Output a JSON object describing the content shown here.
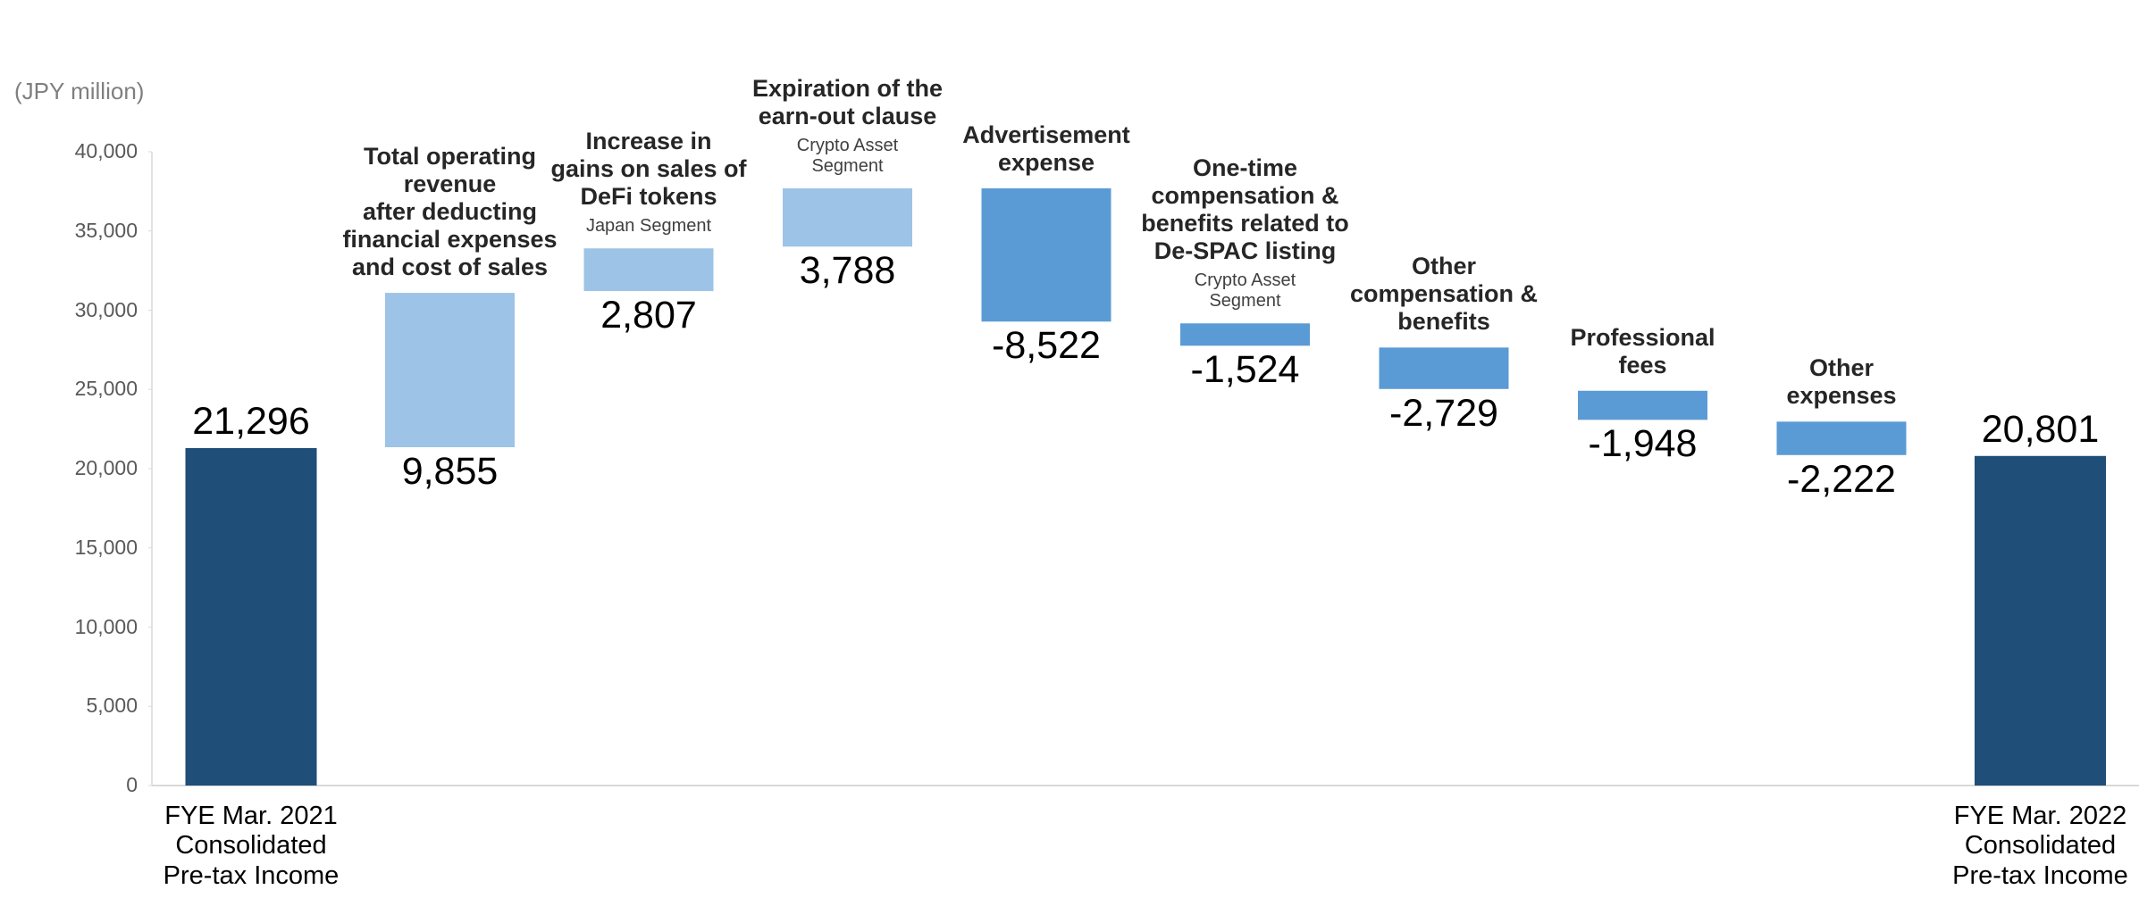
{
  "chart_data": {
    "type": "waterfall",
    "y_axis_label": "(JPY million)",
    "categories": [
      "FYE Mar. 2021\nConsolidated\nPre-tax Income",
      null,
      null,
      null,
      null,
      null,
      null,
      null,
      null,
      "FYE Mar. 2022\nConsolidated\nPre-tax Income"
    ],
    "annotations": [
      null,
      "Total operating\nrevenue\nafter deducting\nfinancial expenses\nand cost of sales",
      "Increase in\ngains on sales of\nDeFi tokens",
      "Expiration of the\nearn-out clause",
      "Advertisement\nexpense",
      "One-time\ncompensation &\nbenefits related to\nDe-SPAC listing",
      "Other\ncompensation &\nbenefits",
      "Professional\nfees",
      "Other\nexpenses",
      null
    ],
    "segments": [
      null,
      null,
      "Japan Segment",
      "Crypto Asset\nSegment",
      null,
      "Crypto Asset\nSegment",
      null,
      null,
      null,
      null
    ],
    "values": [
      21296,
      9855,
      2807,
      3788,
      -8522,
      -1524,
      -2729,
      -1948,
      -2222,
      20801
    ],
    "value_labels": [
      "21,296",
      "9,855",
      "2,807",
      "3,788",
      "-8,522",
      "-1,524",
      "-2,729",
      "-1,948",
      "-2,222",
      "20,801"
    ],
    "colors": [
      "#1f4e79",
      "#9dc3e6",
      "#9dc3e6",
      "#9dc3e6",
      "#5b9bd5",
      "#5b9bd5",
      "#5b9bd5",
      "#5b9bd5",
      "#5b9bd5",
      "#1f4e79"
    ],
    "ylim": [
      0,
      40000
    ],
    "yticks": [
      {
        "value": 0,
        "label": "0"
      },
      {
        "value": 5000,
        "label": "5,000"
      },
      {
        "value": 10000,
        "label": "10,000"
      },
      {
        "value": 15000,
        "label": "15,000"
      },
      {
        "value": 20000,
        "label": "20,000"
      },
      {
        "value": 25000,
        "label": "25,000"
      },
      {
        "value": 30000,
        "label": "30,000"
      },
      {
        "value": 35000,
        "label": "35,000"
      },
      {
        "value": 40000,
        "label": "40,000"
      }
    ],
    "grid": false
  }
}
